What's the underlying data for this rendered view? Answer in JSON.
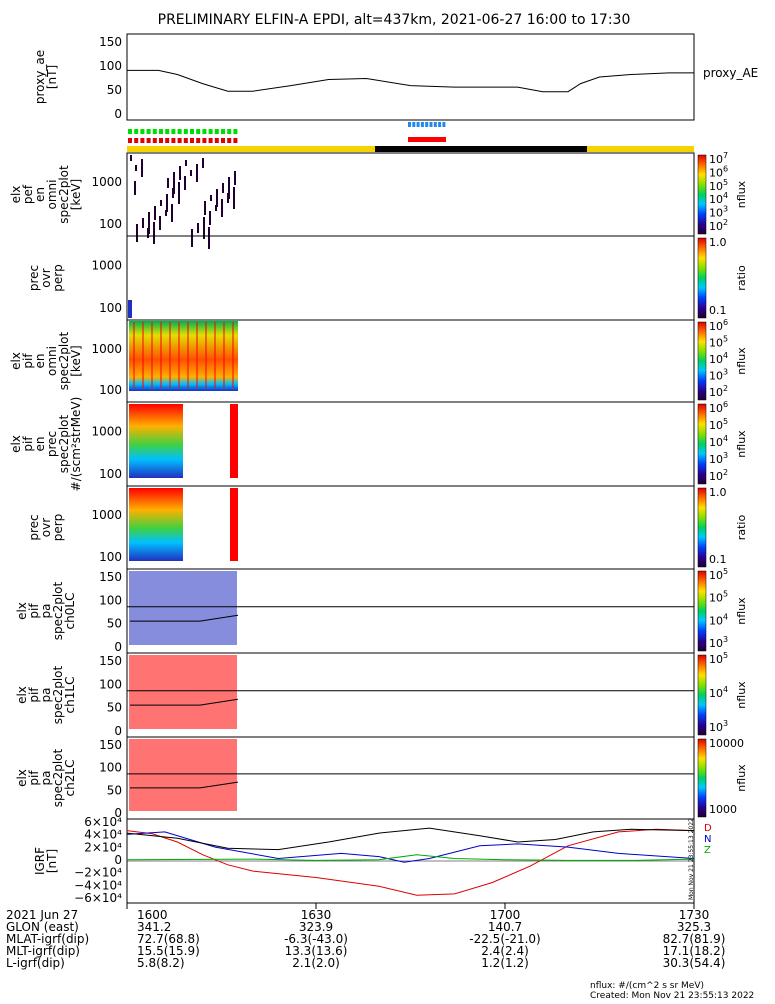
{
  "title": "PRELIMINARY ELFIN-A EPDI, alt=437km, 2021-06-27 16:00 to 17:30",
  "colors": {
    "orbit_bar": "#f5d300",
    "eclipse_bar": "#000000",
    "spin_green": "#00dd00",
    "spin_red": "#e00000",
    "burst_blue": "#2288ee",
    "burst_red": "#ff0000",
    "trace_black": "#000000",
    "trace_red": "#dd0000",
    "trace_blue": "#0000cc",
    "trace_green": "#00aa00"
  },
  "panels": [
    {
      "ylabel": [
        "proxy_ae",
        "[nT]"
      ],
      "yticks": [
        "150",
        "100",
        "50",
        "0"
      ],
      "right_label": "proxy_AE"
    },
    {
      "ylabel": [
        "elx",
        "pef",
        "en",
        "omni",
        "spec2plot",
        "[keV]"
      ],
      "yticks": [
        "1000",
        "100"
      ],
      "cbar_label": "nflux",
      "cbar_ticks": [
        "10",
        "10",
        "10",
        "10",
        "10",
        "10"
      ],
      "cbar_exps": [
        "7",
        "6",
        "5",
        "4",
        "3",
        "2"
      ]
    },
    {
      "ylabel": [
        "prec",
        "ovr",
        "perp"
      ],
      "yticks": [
        "1000",
        "100"
      ],
      "cbar_label": "ratio",
      "cbar_ticks": [
        "1.0",
        "0.1"
      ]
    },
    {
      "ylabel": [
        "elx",
        "pif",
        "en",
        "omni",
        "spec2plot",
        "[keV]"
      ],
      "yticks": [
        "1000",
        "100"
      ],
      "cbar_label": "nflux",
      "cbar_ticks": [
        "10",
        "10",
        "10",
        "10",
        "10"
      ],
      "cbar_exps": [
        "6",
        "5",
        "4",
        "3",
        "2"
      ]
    },
    {
      "ylabel": [
        "elx",
        "pif",
        "en",
        "prec",
        "spec2plot",
        "#/(scm²strMeV)"
      ],
      "yticks": [
        "1000",
        "100"
      ],
      "cbar_label": "nflux",
      "cbar_ticks": [
        "10",
        "10",
        "10",
        "10",
        "10"
      ],
      "cbar_exps": [
        "6",
        "5",
        "4",
        "3",
        "2"
      ]
    },
    {
      "ylabel": [
        "prec",
        "ovr",
        "perp"
      ],
      "yticks": [
        "1000",
        "100"
      ],
      "cbar_label": "ratio",
      "cbar_ticks": [
        "1.0",
        "0.1"
      ]
    },
    {
      "ylabel": [
        "elx",
        "pif",
        "pa",
        "spec2plot",
        "ch0LC"
      ],
      "yticks": [
        "150",
        "100",
        "50",
        "0"
      ],
      "cbar_label": "nflux",
      "cbar_ticks": [
        "10",
        "10",
        "10",
        "10"
      ],
      "cbar_exps": [
        "5",
        "5",
        "4",
        "3"
      ]
    },
    {
      "ylabel": [
        "elx",
        "pif",
        "pa",
        "spec2plot",
        "ch1LC"
      ],
      "yticks": [
        "150",
        "100",
        "50",
        "0"
      ],
      "cbar_label": "nflux",
      "cbar_ticks": [
        "10",
        "10",
        "10"
      ],
      "cbar_exps": [
        "5",
        "4",
        "3"
      ]
    },
    {
      "ylabel": [
        "elx",
        "pif",
        "pa",
        "spec2plot",
        "ch2LC"
      ],
      "yticks": [
        "150",
        "100",
        "50",
        "0"
      ],
      "cbar_label": "nflux",
      "cbar_ticks": [
        "10000",
        "1000"
      ]
    },
    {
      "ylabel": [
        "IGRF",
        "[nT]"
      ],
      "yticks": [
        "6×10⁴",
        "4×10⁴",
        "2×10⁴",
        "0",
        "−2×10⁴",
        "−4×10⁴",
        "−6×10⁴"
      ],
      "legend": [
        "D",
        "N",
        "Z"
      ]
    }
  ],
  "footer": {
    "rows": [
      {
        "label": "2021 Jun 27",
        "values": [
          "1600",
          "1630",
          "1700",
          "1730"
        ]
      },
      {
        "label": "GLON (east)",
        "values": [
          "341.2",
          "323.9",
          "140.7",
          "325.3"
        ]
      },
      {
        "label": "MLAT-igrf(dip)",
        "values": [
          "72.7(68.8)",
          "-6.3(-43.0)",
          "-22.5(-21.0)",
          "82.7(81.9)"
        ]
      },
      {
        "label": "MLT-igrf(dip)",
        "values": [
          "15.5(15.9)",
          "13.3(13.6)",
          "2.4(2.4)",
          "17.1(18.2)"
        ]
      },
      {
        "label": "L-igrf(dip)",
        "values": [
          "5.8(8.2)",
          "2.1(2.0)",
          "1.2(1.2)",
          "30.3(54.4)"
        ]
      }
    ],
    "units_note": "nflux: #/(cm^2 s sr MeV)",
    "created": "Created: Mon Nov 21 23:55:13 2022",
    "side_stamp": "Mon Nov 21 23:55:13 2022"
  },
  "chart_data": {
    "type": "line",
    "title": "PRELIMINARY ELFIN-A EPDI, alt=437km, 2021-06-27 16:00 to 17:30",
    "x_ticks": [
      "1600",
      "1630",
      "1700",
      "1730"
    ],
    "x_range_min": [
      0,
      90
    ],
    "proxy_ae": {
      "ylim": [
        0,
        150
      ],
      "t_min": [
        0,
        5,
        8,
        12,
        16,
        20,
        26,
        32,
        38,
        45,
        52,
        58,
        62,
        66,
        70,
        72,
        75,
        80,
        86,
        90
      ],
      "values": [
        88,
        88,
        80,
        62,
        47,
        47,
        58,
        70,
        72,
        58,
        55,
        55,
        55,
        46,
        46,
        62,
        75,
        80,
        83,
        83
      ]
    },
    "igrf": {
      "ylim": [
        -60000,
        60000
      ],
      "series": [
        {
          "name": "D",
          "color": "red",
          "t_min": [
            0,
            4,
            8,
            12,
            16,
            20,
            30,
            40,
            46,
            52,
            58,
            64,
            70,
            78,
            84,
            90
          ],
          "values": [
            48000,
            43000,
            30000,
            10000,
            -6000,
            -16000,
            -26000,
            -40000,
            -54000,
            -52000,
            -34000,
            -8000,
            24000,
            46000,
            50000,
            48000
          ]
        },
        {
          "name": "N",
          "color": "blue",
          "t_min": [
            0,
            6,
            14,
            24,
            34,
            40,
            44,
            48,
            56,
            62,
            70,
            78,
            90
          ],
          "values": [
            42000,
            46000,
            22000,
            4000,
            12000,
            7000,
            -2000,
            4000,
            24000,
            27000,
            22000,
            12000,
            4000
          ]
        },
        {
          "name": "Z",
          "color": "green",
          "t_min": [
            0,
            20,
            30,
            40,
            46,
            52,
            60,
            70,
            80,
            90
          ],
          "values": [
            2000,
            3000,
            1000,
            2000,
            10000,
            4000,
            2000,
            1000,
            1000,
            3000
          ]
        },
        {
          "name": "total",
          "color": "black",
          "t_min": [
            0,
            8,
            16,
            24,
            32,
            40,
            48,
            56,
            62,
            68,
            74,
            80,
            90
          ],
          "values": [
            44000,
            36000,
            20000,
            18000,
            30000,
            44000,
            52000,
            40000,
            30000,
            34000,
            46000,
            50000,
            48000
          ]
        }
      ]
    }
  }
}
